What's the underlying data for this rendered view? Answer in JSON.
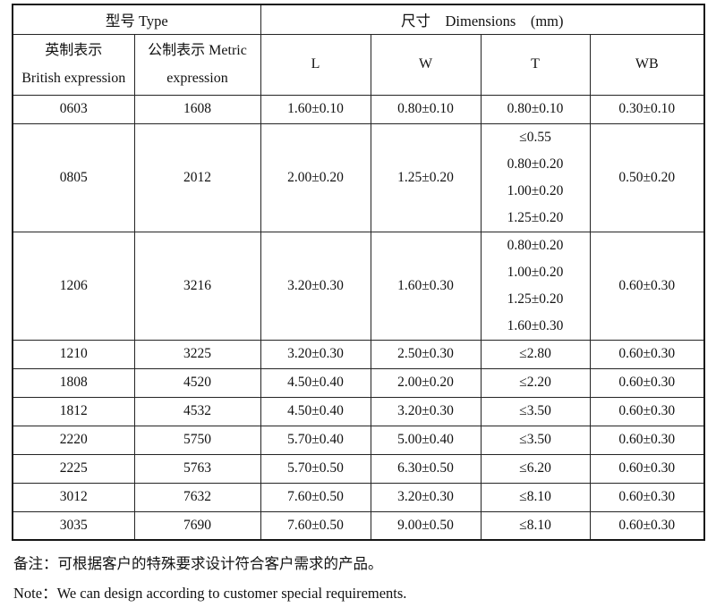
{
  "table": {
    "header": {
      "type_group": "型号 Type",
      "dims_group": "尺寸    Dimensions    (mm)",
      "col_british_line1": "英制表示",
      "col_british_line2": "British expression",
      "col_metric_line1": "公制表示 Metric",
      "col_metric_line2": "expression",
      "col_l": "L",
      "col_w": "W",
      "col_t": "T",
      "col_wb": "WB"
    },
    "rows": [
      {
        "british": "0603",
        "metric": "1608",
        "l": "1.60±0.10",
        "w": "0.80±0.10",
        "t": [
          "0.80±0.10"
        ],
        "wb": "0.30±0.10"
      },
      {
        "british": "0805",
        "metric": "2012",
        "l": "2.00±0.20",
        "w": "1.25±0.20",
        "t": [
          "≤0.55",
          "0.80±0.20",
          "1.00±0.20",
          "1.25±0.20"
        ],
        "wb": "0.50±0.20"
      },
      {
        "british": "1206",
        "metric": "3216",
        "l": "3.20±0.30",
        "w": "1.60±0.30",
        "t": [
          "0.80±0.20",
          "1.00±0.20",
          "1.25±0.20",
          "1.60±0.30"
        ],
        "wb": "0.60±0.30"
      },
      {
        "british": "1210",
        "metric": "3225",
        "l": "3.20±0.30",
        "w": "2.50±0.30",
        "t": [
          "≤2.80"
        ],
        "wb": "0.60±0.30"
      },
      {
        "british": "1808",
        "metric": "4520",
        "l": "4.50±0.40",
        "w": "2.00±0.20",
        "t": [
          "≤2.20"
        ],
        "wb": "0.60±0.30"
      },
      {
        "british": "1812",
        "metric": "4532",
        "l": "4.50±0.40",
        "w": "3.20±0.30",
        "t": [
          "≤3.50"
        ],
        "wb": "0.60±0.30"
      },
      {
        "british": "2220",
        "metric": "5750",
        "l": "5.70±0.40",
        "w": "5.00±0.40",
        "t": [
          "≤3.50"
        ],
        "wb": "0.60±0.30"
      },
      {
        "british": "2225",
        "metric": "5763",
        "l": "5.70±0.50",
        "w": "6.30±0.50",
        "t": [
          "≤6.20"
        ],
        "wb": "0.60±0.30"
      },
      {
        "british": "3012",
        "metric": "7632",
        "l": "7.60±0.50",
        "w": "3.20±0.30",
        "t": [
          "≤8.10"
        ],
        "wb": "0.60±0.30"
      },
      {
        "british": "3035",
        "metric": "7690",
        "l": "7.60±0.50",
        "w": "9.00±0.50",
        "t": [
          "≤8.10"
        ],
        "wb": "0.60±0.30"
      }
    ]
  },
  "notes": {
    "cn": "备注：可根据客户的特殊要求设计符合客户需求的产品。",
    "en": "Note：We can design according to customer special requirements."
  }
}
